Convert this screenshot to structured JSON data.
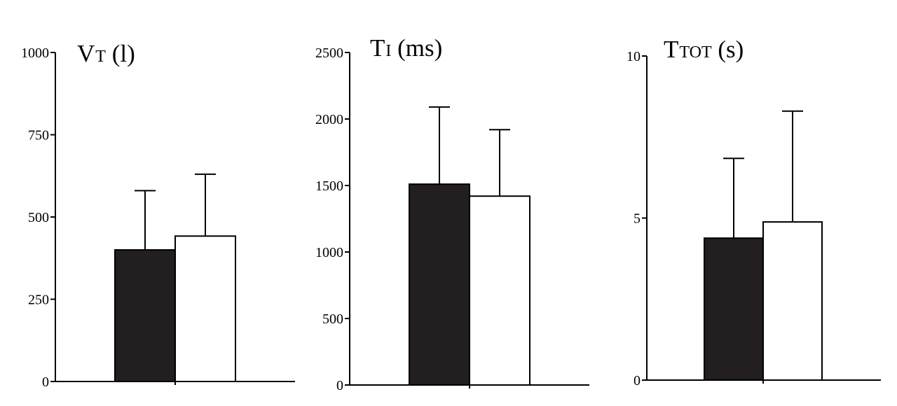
{
  "chart_data": [
    {
      "type": "bar",
      "title_main": "V",
      "title_sub": "T",
      "title_unit": " (l)",
      "ylim": [
        0,
        1000
      ],
      "yticks": [
        0,
        250,
        500,
        750,
        1000
      ],
      "yticks_labels": [
        "0",
        "250",
        "500",
        "750",
        "1000"
      ],
      "series": [
        {
          "value": 400,
          "error": 180,
          "fill": "#231f20"
        },
        {
          "value": 442,
          "error": 188,
          "fill": "#ffffff"
        }
      ],
      "grid": false
    },
    {
      "type": "bar",
      "title_main": "T",
      "title_sub": "I",
      "title_unit": " (ms)",
      "ylim": [
        0,
        2500
      ],
      "yticks": [
        0,
        500,
        1000,
        1500,
        2000,
        2500
      ],
      "yticks_labels": [
        "0",
        "500",
        "1000",
        "1500",
        "2000",
        "2500"
      ],
      "series": [
        {
          "value": 1510,
          "error": 580,
          "fill": "#231f20"
        },
        {
          "value": 1420,
          "error": 500,
          "fill": "#ffffff"
        }
      ],
      "grid": false
    },
    {
      "type": "bar",
      "title_main": "T",
      "title_sub": "TOT",
      "title_unit": " (s)",
      "ylim": [
        0,
        10
      ],
      "yticks": [
        0,
        5,
        10
      ],
      "yticks_labels": [
        "0",
        "5",
        "10"
      ],
      "series": [
        {
          "value": 4.38,
          "error": 2.46,
          "fill": "#231f20"
        },
        {
          "value": 4.88,
          "error": 3.42,
          "fill": "#ffffff"
        }
      ],
      "grid": false
    }
  ]
}
